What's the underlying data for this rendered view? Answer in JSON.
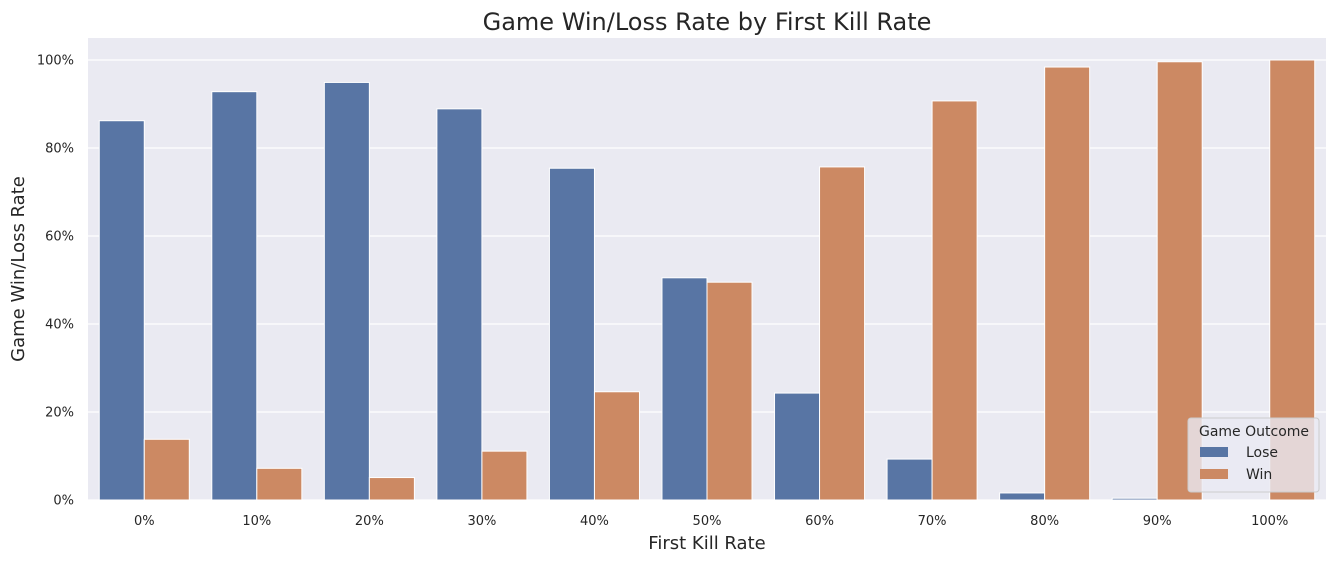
{
  "chart_data": {
    "type": "bar",
    "title": "Game Win/Loss Rate by First Kill Rate",
    "xlabel": "First Kill Rate",
    "ylabel": "Game Win/Loss Rate",
    "categories": [
      "0%",
      "10%",
      "20%",
      "30%",
      "40%",
      "50%",
      "60%",
      "70%",
      "80%",
      "90%",
      "100%"
    ],
    "series": [
      {
        "name": "Lose",
        "color": "#5875a4",
        "values": [
          0.862,
          0.928,
          0.949,
          0.889,
          0.754,
          0.505,
          0.243,
          0.093,
          0.016,
          0.004,
          0.0
        ]
      },
      {
        "name": "Win",
        "color": "#cc8963",
        "values": [
          0.138,
          0.072,
          0.051,
          0.111,
          0.246,
          0.495,
          0.757,
          0.907,
          0.984,
          0.996,
          1.0
        ]
      }
    ],
    "ylim": [
      0,
      1.05
    ],
    "yticks": [
      0,
      0.2,
      0.4,
      0.6,
      0.8,
      1.0
    ],
    "ytick_labels": [
      "0%",
      "20%",
      "40%",
      "60%",
      "80%",
      "100%"
    ],
    "grid": true,
    "legend": {
      "title": "Game Outcome",
      "position": "lower-right"
    },
    "plot_background": "#eaeaf2"
  }
}
